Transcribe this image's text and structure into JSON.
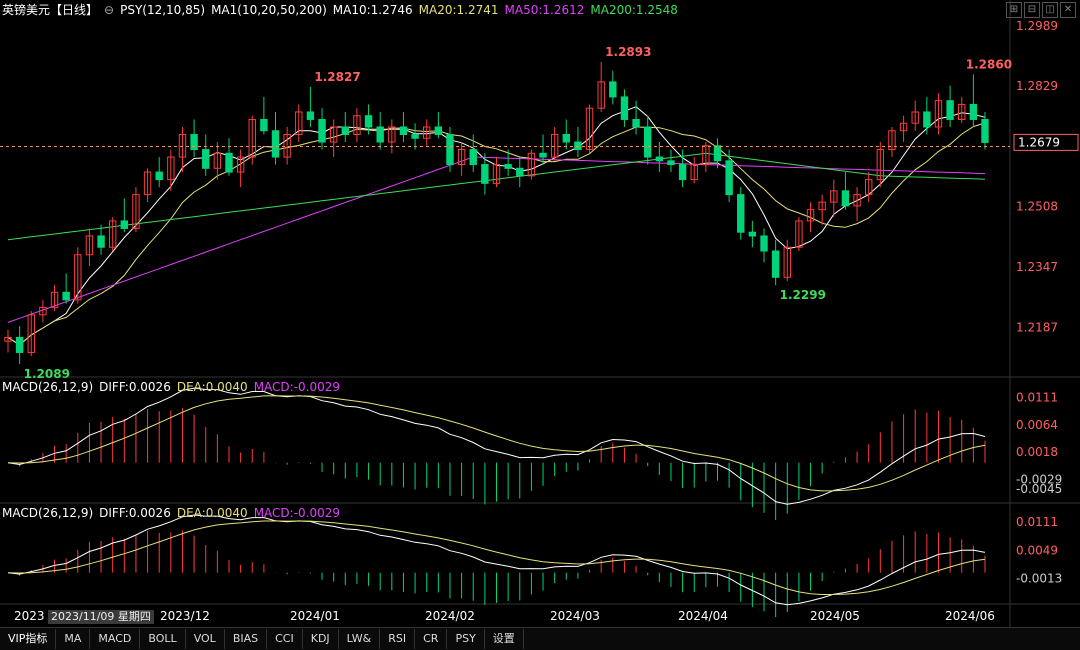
{
  "header": {
    "symbol": "英镑美元",
    "period": "【日线】",
    "psy": "PSY(12,10,85)",
    "ma_group": "MA1(10,20,50,200)",
    "ma10": "MA10:1.2746",
    "ma20": "MA20:1.2741",
    "ma50": "MA50:1.2612",
    "ma200": "MA200:1.2548"
  },
  "macd1": {
    "title": "MACD(26,12,9)",
    "diff": "DIFF:0.0026",
    "dea": "DEA:0.0040",
    "macd": "MACD:-0.0029"
  },
  "macd2": {
    "title": "MACD(26,12,9)",
    "diff": "DIFF:0.0026",
    "dea": "DEA:0.0040",
    "macd": "MACD:-0.0029"
  },
  "date_tip": "2023/11/09 星期四",
  "bottombar": [
    "VIP指标",
    "MA",
    "MACD",
    "BOLL",
    "VOL",
    "BIAS",
    "CCI",
    "KDJ",
    "LW&",
    "RSI",
    "CR",
    "PSY",
    "设置"
  ],
  "colors": {
    "up": "#ff3b3b",
    "down": "#00d47a",
    "ma10": "#ffffff",
    "ma20": "#e6e07a",
    "ma50": "#e040fb",
    "ma200": "#3ddc5a",
    "price": "#ff6060"
  },
  "chart_data": {
    "type": "candlestick",
    "price_axis_ticks": [
      "1.2989",
      "1.2829",
      "1.2668",
      "1.2508",
      "1.2347",
      "1.2187"
    ],
    "last_price": "1.2679",
    "annotations": [
      {
        "label": "1.2089",
        "date": "2023-11-02",
        "type": "low"
      },
      {
        "label": "1.2827",
        "date": "2023-12-28",
        "type": "high"
      },
      {
        "label": "1.2893",
        "date": "2024-03-08",
        "type": "high"
      },
      {
        "label": "1.2299",
        "date": "2024-04-22",
        "type": "low"
      },
      {
        "label": "1.2860",
        "date": "2024-06-12",
        "type": "high"
      }
    ],
    "x_labels": [
      "2023",
      "2023/12",
      "2024/01",
      "2024/02",
      "2024/03",
      "2024/04",
      "2024/05",
      "2024/06"
    ],
    "ohlc": [
      [
        1.215,
        1.218,
        1.212,
        1.216
      ],
      [
        1.216,
        1.219,
        1.2089,
        1.212
      ],
      [
        1.212,
        1.223,
        1.211,
        1.222
      ],
      [
        1.222,
        1.226,
        1.22,
        1.224
      ],
      [
        1.224,
        1.23,
        1.223,
        1.228
      ],
      [
        1.228,
        1.233,
        1.225,
        1.226
      ],
      [
        1.226,
        1.24,
        1.225,
        1.238
      ],
      [
        1.238,
        1.245,
        1.235,
        1.243
      ],
      [
        1.243,
        1.246,
        1.238,
        1.24
      ],
      [
        1.24,
        1.248,
        1.239,
        1.247
      ],
      [
        1.247,
        1.253,
        1.244,
        1.245
      ],
      [
        1.245,
        1.256,
        1.244,
        1.254
      ],
      [
        1.254,
        1.261,
        1.252,
        1.26
      ],
      [
        1.26,
        1.264,
        1.256,
        1.258
      ],
      [
        1.258,
        1.266,
        1.255,
        1.264
      ],
      [
        1.264,
        1.272,
        1.26,
        1.27
      ],
      [
        1.27,
        1.274,
        1.264,
        1.266
      ],
      [
        1.266,
        1.27,
        1.259,
        1.261
      ],
      [
        1.261,
        1.268,
        1.258,
        1.265
      ],
      [
        1.265,
        1.269,
        1.259,
        1.26
      ],
      [
        1.26,
        1.266,
        1.256,
        1.264
      ],
      [
        1.264,
        1.275,
        1.262,
        1.274
      ],
      [
        1.274,
        1.28,
        1.27,
        1.271
      ],
      [
        1.271,
        1.276,
        1.262,
        1.264
      ],
      [
        1.264,
        1.272,
        1.262,
        1.27
      ],
      [
        1.27,
        1.278,
        1.268,
        1.276
      ],
      [
        1.276,
        1.2827,
        1.272,
        1.274
      ],
      [
        1.274,
        1.277,
        1.266,
        1.268
      ],
      [
        1.268,
        1.274,
        1.264,
        1.272
      ],
      [
        1.272,
        1.276,
        1.268,
        1.27
      ],
      [
        1.27,
        1.277,
        1.268,
        1.275
      ],
      [
        1.275,
        1.278,
        1.27,
        1.272
      ],
      [
        1.272,
        1.276,
        1.266,
        1.268
      ],
      [
        1.268,
        1.274,
        1.265,
        1.272
      ],
      [
        1.272,
        1.276,
        1.268,
        1.27
      ],
      [
        1.27,
        1.273,
        1.266,
        1.269
      ],
      [
        1.269,
        1.274,
        1.267,
        1.272
      ],
      [
        1.272,
        1.276,
        1.269,
        1.27
      ],
      [
        1.27,
        1.272,
        1.26,
        1.262
      ],
      [
        1.262,
        1.268,
        1.259,
        1.266
      ],
      [
        1.266,
        1.27,
        1.26,
        1.262
      ],
      [
        1.262,
        1.265,
        1.254,
        1.257
      ],
      [
        1.257,
        1.264,
        1.256,
        1.262
      ],
      [
        1.262,
        1.266,
        1.259,
        1.261
      ],
      [
        1.261,
        1.264,
        1.256,
        1.259
      ],
      [
        1.259,
        1.266,
        1.258,
        1.265
      ],
      [
        1.265,
        1.27,
        1.262,
        1.264
      ],
      [
        1.264,
        1.272,
        1.263,
        1.27
      ],
      [
        1.27,
        1.274,
        1.266,
        1.268
      ],
      [
        1.268,
        1.272,
        1.264,
        1.266
      ],
      [
        1.266,
        1.278,
        1.265,
        1.277
      ],
      [
        1.277,
        1.2893,
        1.276,
        1.284
      ],
      [
        1.284,
        1.287,
        1.278,
        1.28
      ],
      [
        1.28,
        1.282,
        1.272,
        1.274
      ],
      [
        1.274,
        1.279,
        1.27,
        1.272
      ],
      [
        1.272,
        1.275,
        1.262,
        1.264
      ],
      [
        1.264,
        1.268,
        1.26,
        1.263
      ],
      [
        1.263,
        1.266,
        1.26,
        1.262
      ],
      [
        1.262,
        1.266,
        1.256,
        1.258
      ],
      [
        1.258,
        1.264,
        1.257,
        1.262
      ],
      [
        1.262,
        1.268,
        1.26,
        1.267
      ],
      [
        1.267,
        1.269,
        1.261,
        1.263
      ],
      [
        1.263,
        1.266,
        1.252,
        1.254
      ],
      [
        1.254,
        1.256,
        1.242,
        1.244
      ],
      [
        1.244,
        1.247,
        1.24,
        1.243
      ],
      [
        1.243,
        1.245,
        1.236,
        1.239
      ],
      [
        1.239,
        1.242,
        1.2299,
        1.232
      ],
      [
        1.232,
        1.242,
        1.231,
        1.24
      ],
      [
        1.24,
        1.248,
        1.239,
        1.247
      ],
      [
        1.247,
        1.252,
        1.244,
        1.25
      ],
      [
        1.25,
        1.254,
        1.246,
        1.252
      ],
      [
        1.252,
        1.258,
        1.248,
        1.255
      ],
      [
        1.255,
        1.26,
        1.25,
        1.251
      ],
      [
        1.251,
        1.256,
        1.247,
        1.254
      ],
      [
        1.254,
        1.26,
        1.252,
        1.258
      ],
      [
        1.258,
        1.268,
        1.256,
        1.266
      ],
      [
        1.266,
        1.272,
        1.264,
        1.271
      ],
      [
        1.271,
        1.275,
        1.268,
        1.273
      ],
      [
        1.273,
        1.279,
        1.271,
        1.276
      ],
      [
        1.276,
        1.28,
        1.27,
        1.272
      ],
      [
        1.272,
        1.281,
        1.27,
        1.279
      ],
      [
        1.279,
        1.283,
        1.272,
        1.274
      ],
      [
        1.274,
        1.28,
        1.273,
        1.278
      ],
      [
        1.278,
        1.286,
        1.272,
        1.274
      ],
      [
        1.274,
        1.276,
        1.266,
        1.2679
      ]
    ]
  }
}
